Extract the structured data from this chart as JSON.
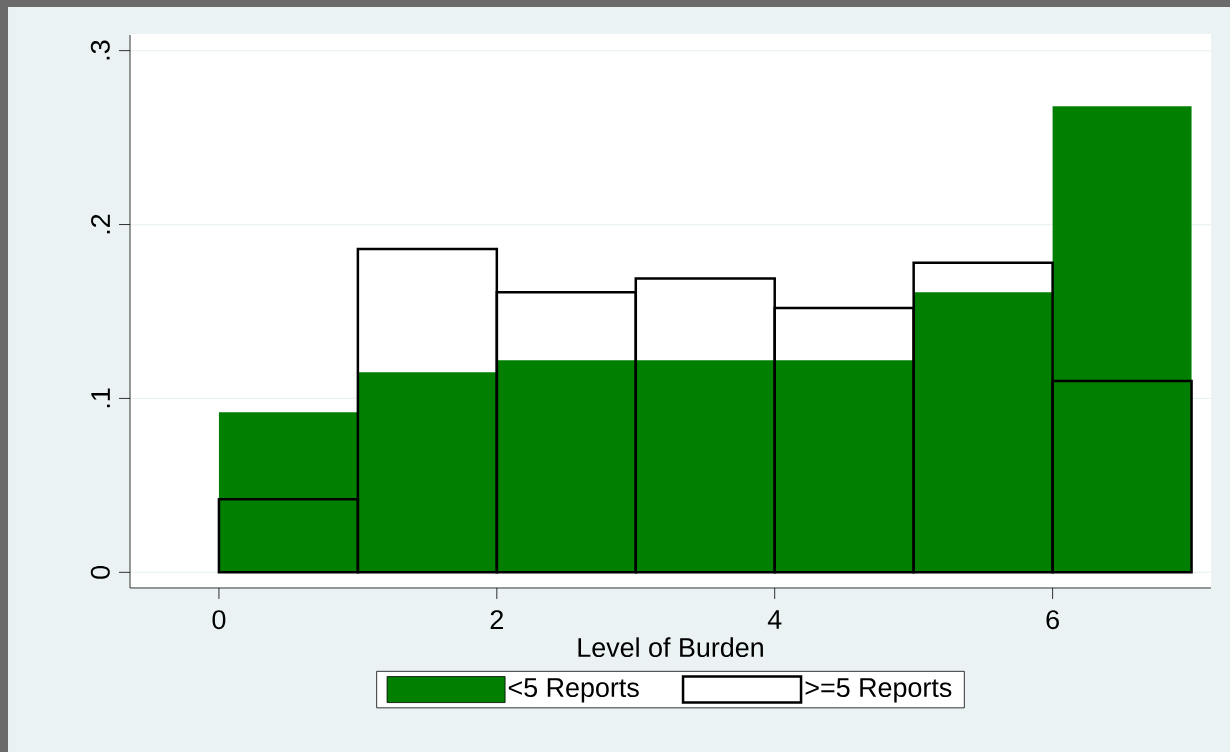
{
  "chart_data": {
    "type": "histogram",
    "xlabel": "Level of Burden",
    "bins": [
      0,
      1,
      2,
      3,
      4,
      5,
      6,
      7
    ],
    "series": [
      {
        "name": "<5 Reports",
        "color": "#007f00",
        "values": [
          0.092,
          0.115,
          0.122,
          0.122,
          0.122,
          0.161,
          0.268
        ]
      },
      {
        "name": ">=5 Reports",
        "color": "#000000",
        "values": [
          0.042,
          0.186,
          0.161,
          0.169,
          0.152,
          0.178,
          0.11
        ]
      }
    ],
    "xlim": [
      -0.64,
      7.14
    ],
    "ylim": [
      -0.009,
      0.309
    ],
    "xticks": [
      0,
      2,
      4,
      6
    ],
    "yticks": [
      0,
      {
        "value": 0.1,
        "label": ".1"
      },
      {
        "value": 0.2,
        "label": ".2"
      },
      {
        "value": 0.3,
        "label": ".3"
      }
    ],
    "grid": "y",
    "legend": "bottom"
  }
}
